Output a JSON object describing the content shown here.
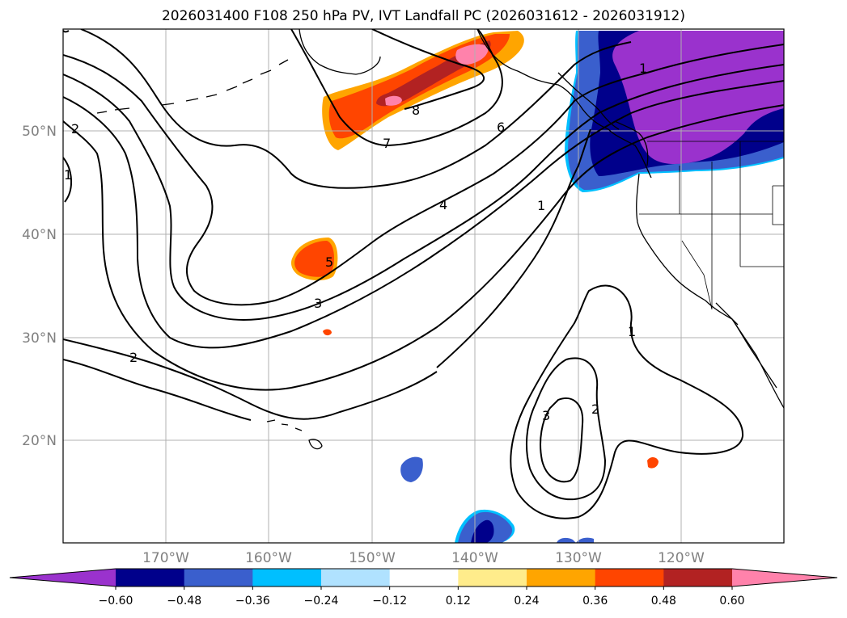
{
  "title": "2026031400 F108 250 hPa PV, IVT Landfall PC (2026031612 - 2026031912)",
  "latitude_labels": [
    "50°N",
    "40°N",
    "30°N",
    "20°N"
  ],
  "longitude_labels": [
    "170°W",
    "160°W",
    "150°W",
    "140°W",
    "130°W",
    "120°W"
  ],
  "contour_labels": [
    "8",
    "7",
    "6",
    "4",
    "1",
    "2",
    "1",
    "5",
    "3",
    "2",
    "1",
    "3",
    "2",
    "1"
  ],
  "colorbar": {
    "ticks": [
      "−0.60",
      "−0.48",
      "−0.36",
      "−0.24",
      "−0.12",
      "0.12",
      "0.24",
      "0.36",
      "0.48",
      "0.60"
    ],
    "colors": [
      "#9a32cd",
      "#00008b",
      "#3a5fcd",
      "#00bfff",
      "#b0e2ff",
      "#ffffff",
      "#ffec8b",
      "#ffa500",
      "#ff4500",
      "#b22222",
      "#ff82ab"
    ]
  },
  "colors": {
    "land": "#000000",
    "grid": "#b0b0b0",
    "contour": "#000000"
  }
}
